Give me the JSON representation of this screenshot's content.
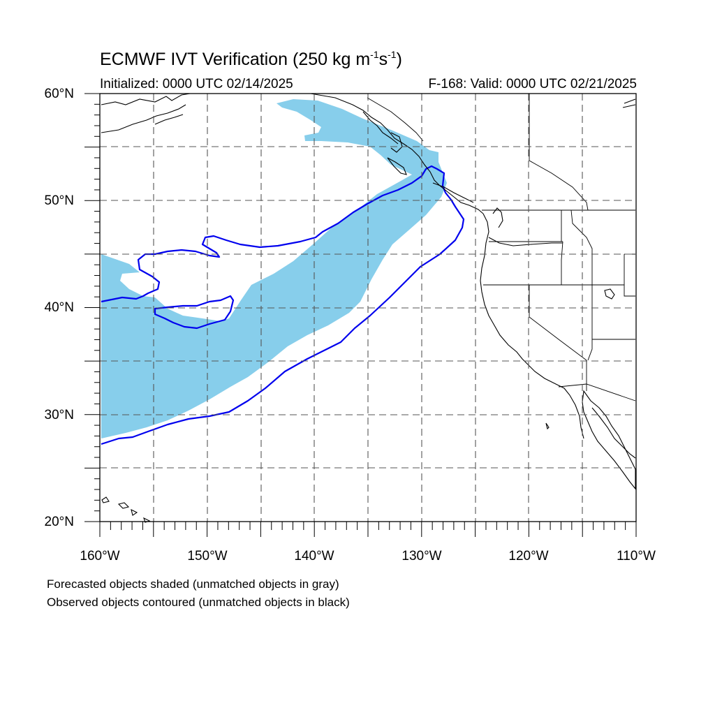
{
  "title": {
    "prefix": "ECMWF IVT Verification (250 kg m",
    "sup1": "-1",
    "mid": "s",
    "sup2": "-1",
    "suffix": ")"
  },
  "initialized": "Initialized: 0000 UTC 02/14/2025",
  "valid": "F-168: Valid: 0000 UTC 02/21/2025",
  "lat_labels": [
    "60°N",
    "50°N",
    "40°N",
    "30°N",
    "20°N"
  ],
  "lon_labels": [
    "160°W",
    "150°W",
    "140°W",
    "130°W",
    "120°W",
    "110°W"
  ],
  "footnotes": [
    "Forecasted objects shaded (unmatched objects in gray)",
    "Observed objects contoured (unmatched objects in black)"
  ],
  "colors": {
    "forecast_fill": "#87CEEB",
    "observed_contour": "#0000EE",
    "coastline": "#000000",
    "gridline": "#555555"
  },
  "map_extent": {
    "lon_min": -160,
    "lon_max": -110,
    "lat_min": 20,
    "lat_max": 60
  }
}
